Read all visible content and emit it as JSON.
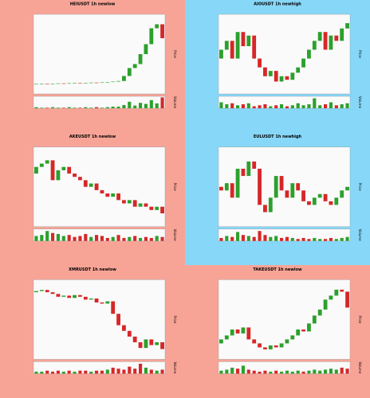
{
  "chart_data": [
    {
      "type": "candlestick",
      "title": "HEIUSDT 1h newlow",
      "ylabel": "Price",
      "vlabel": "Volume",
      "up_color": "#2ca02c",
      "down_color": "#d62728",
      "ylim": [
        0.05,
        0.45
      ],
      "vlim": [
        0,
        22
      ],
      "open": [
        0.099,
        0.1,
        0.101,
        0.1,
        0.102,
        0.103,
        0.102,
        0.104,
        0.105,
        0.104,
        0.106,
        0.107,
        0.106,
        0.108,
        0.11,
        0.112,
        0.115,
        0.14,
        0.18,
        0.2,
        0.25,
        0.3,
        0.38,
        0.4
      ],
      "close": [
        0.1,
        0.101,
        0.1,
        0.102,
        0.103,
        0.102,
        0.104,
        0.105,
        0.104,
        0.106,
        0.107,
        0.106,
        0.108,
        0.11,
        0.112,
        0.115,
        0.14,
        0.18,
        0.2,
        0.25,
        0.3,
        0.38,
        0.4,
        0.33
      ],
      "volume": [
        2,
        1,
        1,
        2,
        1,
        1,
        2,
        1,
        1,
        2,
        1,
        2,
        1,
        2,
        3,
        3,
        6,
        12,
        5,
        10,
        8,
        15,
        9,
        20
      ]
    },
    {
      "type": "candlestick",
      "title": "AIOUSDT 1h newhigh",
      "ylabel": "Price",
      "vlabel": "Volume",
      "up_color": "#2ca02c",
      "down_color": "#d62728",
      "ylim": [
        0.85,
        1.3
      ],
      "vlim": [
        0,
        12
      ],
      "open": [
        1.05,
        1.1,
        1.15,
        1.05,
        1.2,
        1.12,
        1.18,
        1.05,
        1.0,
        0.95,
        0.98,
        0.92,
        0.95,
        0.93,
        0.97,
        1.0,
        1.05,
        1.1,
        1.15,
        1.2,
        1.1,
        1.18,
        1.15,
        1.22
      ],
      "close": [
        1.1,
        1.15,
        1.05,
        1.2,
        1.12,
        1.18,
        1.05,
        1.0,
        0.95,
        0.98,
        0.92,
        0.95,
        0.93,
        0.97,
        1.0,
        1.05,
        1.1,
        1.15,
        1.2,
        1.1,
        1.18,
        1.15,
        1.22,
        1.25
      ],
      "volume": [
        6,
        4,
        5,
        3,
        4,
        5,
        2,
        3,
        4,
        2,
        3,
        4,
        2,
        3,
        5,
        3,
        4,
        10,
        3,
        4,
        6,
        3,
        4,
        5
      ]
    },
    {
      "type": "candlestick",
      "title": "AKEUSDT 1h newlow",
      "ylabel": "Price",
      "vlabel": "Volume",
      "up_color": "#2ca02c",
      "down_color": "#d62728",
      "ylim": [
        1.0,
        2.2
      ],
      "vlim": [
        0,
        12
      ],
      "open": [
        1.8,
        1.9,
        1.95,
        2.0,
        1.7,
        1.85,
        1.9,
        1.8,
        1.75,
        1.7,
        1.6,
        1.65,
        1.55,
        1.5,
        1.45,
        1.5,
        1.4,
        1.35,
        1.4,
        1.3,
        1.35,
        1.3,
        1.25,
        1.3
      ],
      "close": [
        1.9,
        1.95,
        2.0,
        1.7,
        1.85,
        1.9,
        1.8,
        1.75,
        1.7,
        1.6,
        1.65,
        1.55,
        1.5,
        1.45,
        1.5,
        1.4,
        1.35,
        1.4,
        1.3,
        1.35,
        1.3,
        1.25,
        1.3,
        1.2
      ],
      "volume": [
        5,
        6,
        10,
        8,
        7,
        5,
        6,
        4,
        5,
        7,
        4,
        6,
        5,
        3,
        4,
        6,
        3,
        4,
        5,
        3,
        4,
        3,
        5,
        4
      ]
    },
    {
      "type": "candlestick",
      "title": "EULUSDT 1h newhigh",
      "ylabel": "Price",
      "vlabel": "Volume",
      "up_color": "#2ca02c",
      "down_color": "#d62728",
      "ylim": [
        2.5,
        3.6
      ],
      "vlim": [
        0,
        12
      ],
      "open": [
        3.05,
        3.0,
        3.1,
        2.9,
        3.3,
        3.2,
        3.4,
        3.3,
        2.8,
        2.7,
        2.9,
        3.2,
        3.0,
        2.9,
        3.1,
        3.0,
        2.85,
        2.8,
        2.9,
        2.95,
        2.85,
        2.8,
        2.9,
        3.0
      ],
      "close": [
        3.0,
        3.1,
        2.9,
        3.3,
        3.2,
        3.4,
        3.3,
        2.8,
        2.7,
        2.9,
        3.2,
        3.0,
        2.9,
        3.1,
        3.0,
        2.85,
        2.8,
        2.9,
        2.95,
        2.85,
        2.8,
        2.9,
        3.0,
        3.05
      ],
      "volume": [
        3,
        5,
        4,
        9,
        6,
        5,
        4,
        10,
        6,
        4,
        5,
        3,
        4,
        3,
        2,
        3,
        2,
        3,
        2,
        2,
        3,
        2,
        3,
        4
      ]
    },
    {
      "type": "candlestick",
      "title": "XMRUSDT 1h newlow",
      "ylabel": "Price",
      "vlabel": "Volume",
      "up_color": "#2ca02c",
      "down_color": "#d62728",
      "ylim": [
        220,
        360
      ],
      "vlim": [
        0,
        12
      ],
      "open": [
        338,
        340,
        342,
        338,
        335,
        330,
        332,
        328,
        333,
        330,
        325,
        327,
        320,
        318,
        322,
        300,
        280,
        270,
        260,
        250,
        240,
        255,
        245,
        250
      ],
      "close": [
        340,
        342,
        338,
        335,
        330,
        332,
        328,
        333,
        330,
        325,
        327,
        320,
        318,
        322,
        300,
        280,
        270,
        260,
        250,
        240,
        255,
        245,
        250,
        238
      ],
      "volume": [
        2,
        2,
        3,
        2,
        3,
        2,
        3,
        2,
        3,
        3,
        2,
        3,
        3,
        4,
        6,
        5,
        4,
        7,
        5,
        10,
        6,
        4,
        3,
        4
      ]
    },
    {
      "type": "candlestick",
      "title": "TAKEUSDT 1h newlow",
      "ylabel": "Price",
      "vlabel": "Volume",
      "up_color": "#2ca02c",
      "down_color": "#d62728",
      "ylim": [
        0.4,
        0.8
      ],
      "vlim": [
        0,
        12
      ],
      "open": [
        0.48,
        0.5,
        0.52,
        0.55,
        0.53,
        0.56,
        0.5,
        0.48,
        0.46,
        0.45,
        0.47,
        0.46,
        0.48,
        0.5,
        0.52,
        0.55,
        0.54,
        0.58,
        0.62,
        0.65,
        0.7,
        0.72,
        0.75,
        0.74
      ],
      "close": [
        0.5,
        0.52,
        0.55,
        0.53,
        0.56,
        0.5,
        0.48,
        0.46,
        0.45,
        0.47,
        0.46,
        0.48,
        0.5,
        0.52,
        0.55,
        0.54,
        0.58,
        0.62,
        0.65,
        0.7,
        0.72,
        0.75,
        0.74,
        0.66
      ],
      "volume": [
        3,
        4,
        6,
        5,
        8,
        4,
        3,
        2,
        3,
        2,
        3,
        2,
        3,
        2,
        3,
        2,
        3,
        4,
        3,
        4,
        5,
        4,
        6,
        5
      ]
    }
  ]
}
